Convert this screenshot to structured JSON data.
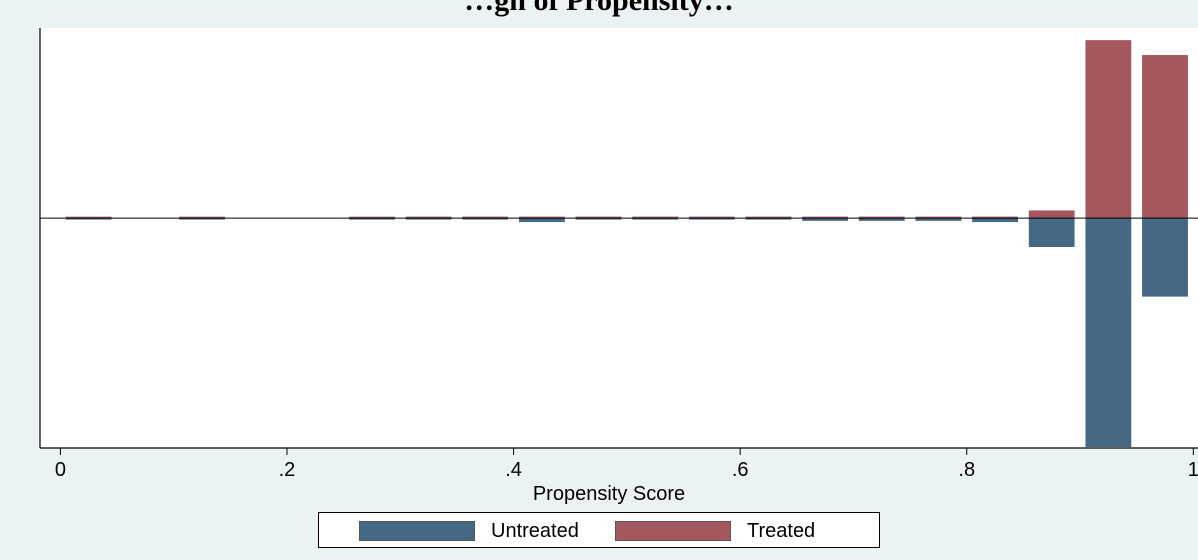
{
  "chart_data": {
    "type": "bar",
    "title": "…gn of Propensity…",
    "xlabel": "Propensity Score",
    "ylabel": "",
    "xlim": [
      -0.018,
      1.005
    ],
    "ylim": [
      -0.185,
      0.153
    ],
    "x_ticks": [
      {
        "value": 0,
        "label": "0"
      },
      {
        "value": 0.2,
        "label": ".2"
      },
      {
        "value": 0.4,
        "label": ".4"
      },
      {
        "value": 0.6,
        "label": ".6"
      },
      {
        "value": 0.8,
        "label": ".8"
      },
      {
        "value": 1,
        "label": "1"
      }
    ],
    "y_ticks_visible": false,
    "grid": false,
    "legend_placement": "bottom",
    "bin_width": 0.04,
    "bins": [
      0.025,
      0.125,
      0.275,
      0.325,
      0.375,
      0.425,
      0.475,
      0.525,
      0.575,
      0.625,
      0.675,
      0.725,
      0.775,
      0.825,
      0.875,
      0.925,
      0.975
    ],
    "series": [
      {
        "name": "Untreated",
        "color": "#456884",
        "values": [
          -0.001,
          -0.001,
          -0.001,
          -0.001,
          -0.001,
          -0.003,
          -0.001,
          -0.001,
          -0.001,
          -0.001,
          -0.002,
          -0.002,
          -0.002,
          -0.003,
          -0.023,
          -0.184,
          -0.063
        ]
      },
      {
        "name": "Treated",
        "color": "#a4575d",
        "values": [
          0,
          0,
          0,
          0.001,
          0.001,
          0.001,
          0.001,
          0.001,
          0.001,
          0.001,
          0.001,
          0.001,
          0.001,
          0.001,
          0.006,
          0.143,
          0.131
        ]
      }
    ]
  }
}
